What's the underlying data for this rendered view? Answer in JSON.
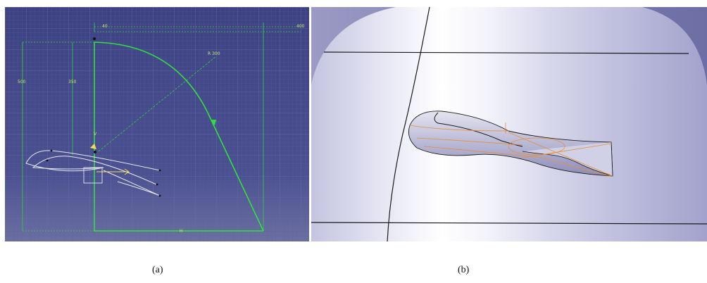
{
  "figure": {
    "captions": {
      "a": "(a)",
      "b": "(b)"
    }
  },
  "sketch": {
    "dimension_labels": {
      "top_offset": "40",
      "top_total": "400",
      "left_height": "500",
      "inner_height": "350",
      "radius": "R 300"
    },
    "axis_labels": {
      "h_marker": "H",
      "v_marker": "V"
    },
    "colors": {
      "background": "#3a3f7a",
      "construction": "#22cc22",
      "profile": "#e8e8f0",
      "highlight": "#f0e050"
    }
  },
  "render": {
    "colors": {
      "surface_light": "#f4f4fb",
      "surface_shadow": "#9a9ac8",
      "edge": "#1a1a1a",
      "sweep_highlight": "#e8903a"
    }
  }
}
